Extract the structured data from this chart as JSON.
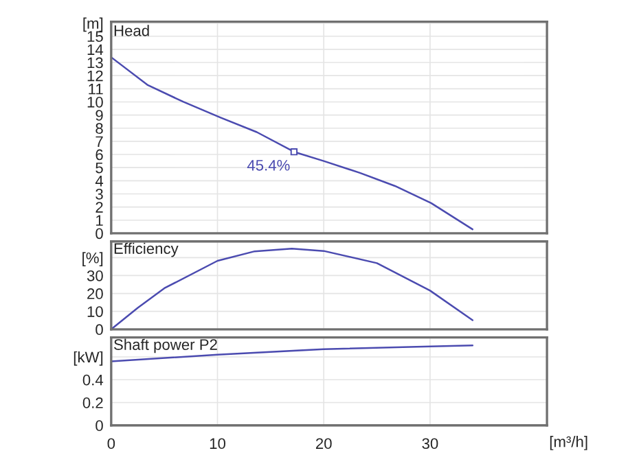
{
  "chart_data": [
    {
      "type": "line",
      "title": "Head",
      "x": [
        0,
        3.4,
        6.8,
        10.3,
        13.7,
        17.2,
        20,
        23.4,
        26.7,
        30.1,
        34.0
      ],
      "series": [
        {
          "color": "#4b4bb0",
          "values": [
            13.4,
            11.3,
            10.0,
            8.8,
            7.7,
            6.2,
            5.5,
            4.6,
            3.6,
            2.3,
            0.3
          ]
        }
      ],
      "annotations": [
        {
          "text": "45.4%",
          "x": 17.2,
          "y": 6.2
        }
      ],
      "xlim": [
        0,
        41
      ],
      "ylim": [
        0,
        16.1
      ],
      "yticks": [
        0,
        1,
        2,
        3,
        4,
        5,
        6,
        7,
        8,
        9,
        10,
        11,
        12,
        13,
        14,
        15,
        {
          "value": 16,
          "label": "[m]"
        }
      ],
      "xticks": [
        0,
        10,
        20,
        30
      ],
      "tick_labels": "y",
      "grid": true
    },
    {
      "type": "line",
      "title": "Efficiency",
      "x": [
        0,
        2.5,
        5,
        10,
        13.5,
        17,
        20,
        25,
        30,
        34
      ],
      "series": [
        {
          "color": "#4b4bb0",
          "values": [
            0,
            12,
            22.9,
            38.2,
            43.5,
            45.0,
            43.7,
            36.9,
            21.6,
            5.1
          ]
        }
      ],
      "xlim": [
        0,
        41
      ],
      "ylim": [
        0,
        49
      ],
      "yticks": [
        0,
        10,
        20,
        30,
        {
          "value": 40,
          "label": "[%]"
        }
      ],
      "xticks": [
        0,
        10,
        20,
        30
      ],
      "tick_labels": "y",
      "grid": true
    },
    {
      "type": "line",
      "title": "Shaft power P2",
      "xlabel": "[m³/h]",
      "x": [
        0,
        10,
        20,
        30,
        34
      ],
      "series": [
        {
          "color": "#4b4bb0",
          "values": [
            0.56,
            0.62,
            0.668,
            0.692,
            0.7
          ]
        }
      ],
      "xlim": [
        0,
        41
      ],
      "ylim": [
        0,
        0.77
      ],
      "yticks": [
        0,
        0.2,
        0.4,
        {
          "value": 0.6,
          "label": "[kW]"
        }
      ],
      "xticks": [
        0,
        10,
        20,
        30
      ],
      "grid": true
    }
  ]
}
